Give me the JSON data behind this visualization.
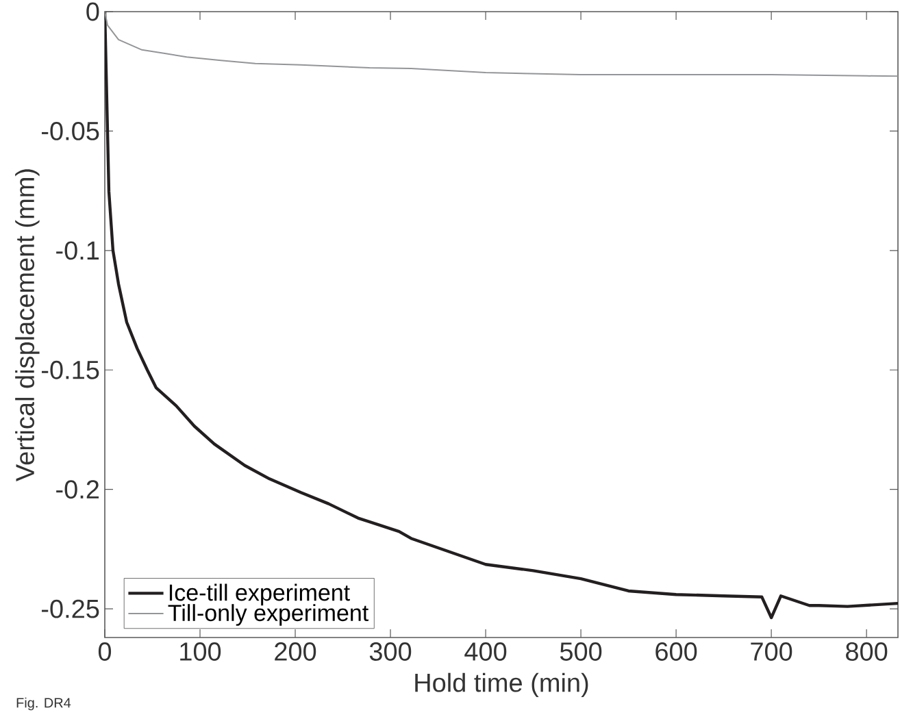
{
  "chart_data": {
    "type": "line",
    "xlabel": "Hold time (min)",
    "ylabel": "Vertical displacement (mm)",
    "xlim": [
      0,
      833
    ],
    "ylim": [
      -0.262,
      0
    ],
    "xticks": [
      0,
      100,
      200,
      300,
      400,
      500,
      600,
      700,
      800
    ],
    "yticks": [
      {
        "value": -0.25,
        "label": "-0.25"
      },
      {
        "value": -0.2,
        "label": "-0.2"
      },
      {
        "value": -0.15,
        "label": "-0.15"
      },
      {
        "value": -0.1,
        "label": "-0.1"
      },
      {
        "value": -0.05,
        "label": "-0.05"
      },
      {
        "value": 0,
        "label": "0"
      }
    ],
    "legend": "bottom left",
    "grid": false,
    "annotations": [
      "Fig. DR4"
    ],
    "series": [
      {
        "name": "Ice-till experiment",
        "color": "#231f20",
        "x": [
          0,
          4.3,
          8.6,
          14.4,
          23,
          34,
          44.6,
          54,
          75,
          94,
          115,
          147,
          173,
          206,
          235,
          266,
          309,
          321.6,
          400,
          450,
          500,
          550,
          600,
          650,
          690,
          700,
          710,
          740,
          750,
          780,
          833
        ],
        "values": [
          0,
          -0.0753,
          -0.1,
          -0.114,
          -0.13,
          -0.141,
          -0.15,
          -0.1575,
          -0.165,
          -0.1735,
          -0.181,
          -0.19,
          -0.1956,
          -0.2013,
          -0.206,
          -0.212,
          -0.2176,
          -0.2205,
          -0.2314,
          -0.234,
          -0.2374,
          -0.2425,
          -0.244,
          -0.2446,
          -0.245,
          -0.2537,
          -0.2446,
          -0.2486,
          -0.2486,
          -0.249,
          -0.2477
        ]
      },
      {
        "name": "Till-only experiment",
        "color": "#939598",
        "x": [
          0,
          2.9,
          14.4,
          39,
          63,
          86,
          122,
          158,
          206,
          278,
          321.6,
          400,
          500,
          600,
          700,
          800,
          833
        ],
        "values": [
          0,
          -0.0057,
          -0.0117,
          -0.016,
          -0.0175,
          -0.019,
          -0.0204,
          -0.0217,
          -0.0223,
          -0.0235,
          -0.0238,
          -0.0255,
          -0.0264,
          -0.0264,
          -0.0264,
          -0.0269,
          -0.027
        ]
      }
    ]
  }
}
